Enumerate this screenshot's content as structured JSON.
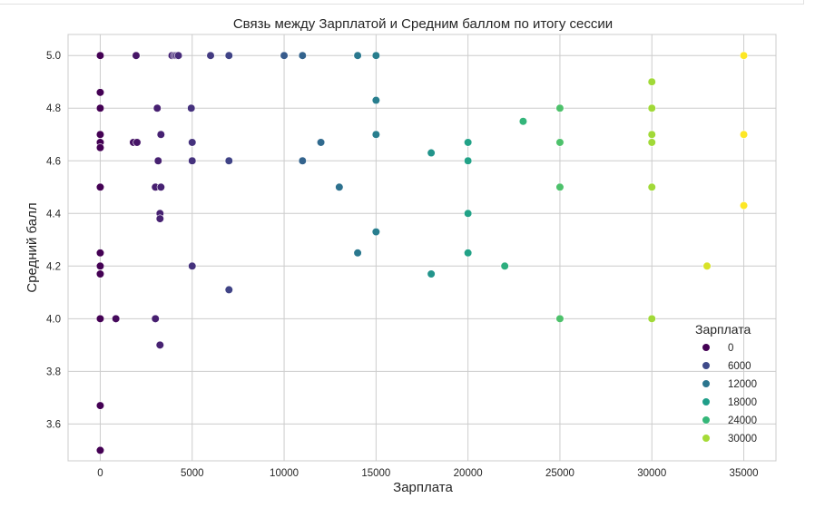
{
  "chart_data": {
    "type": "scatter",
    "title": "Связь между Зарплатой и Средним баллом по итогу сессии",
    "xlabel": "Зарплата",
    "ylabel": "Средний балл",
    "xlim": [
      -1750,
      36750
    ],
    "ylim": [
      3.46,
      5.08
    ],
    "xticks": [
      0,
      5000,
      10000,
      15000,
      20000,
      25000,
      30000,
      35000
    ],
    "yticks": [
      3.6,
      3.8,
      4.0,
      4.2,
      4.4,
      4.6,
      4.8,
      5.0
    ],
    "ytick_labels": [
      "3.6",
      "3.8",
      "4.0",
      "4.2",
      "4.4",
      "4.6",
      "4.8",
      "5.0"
    ],
    "grid": true,
    "hue": "Зарплата",
    "colormap": "viridis",
    "hue_range": [
      0,
      35000
    ],
    "legend": {
      "title": "Зарплата",
      "placement": "lower-right",
      "entries": [
        {
          "label": "0",
          "value": 0,
          "color": "#440154"
        },
        {
          "label": "6000",
          "value": 6000,
          "color": "#3e4a89"
        },
        {
          "label": "12000",
          "value": 12000,
          "color": "#2b758e"
        },
        {
          "label": "18000",
          "value": 18000,
          "color": "#1f9e89"
        },
        {
          "label": "24000",
          "value": 24000,
          "color": "#35b779"
        },
        {
          "label": "30000",
          "value": 30000,
          "color": "#a5db36"
        }
      ]
    },
    "points": [
      {
        "x": 0,
        "y": 5.0
      },
      {
        "x": 0,
        "y": 4.86
      },
      {
        "x": 0,
        "y": 4.8
      },
      {
        "x": 0,
        "y": 4.7
      },
      {
        "x": 0,
        "y": 4.67
      },
      {
        "x": 0,
        "y": 4.65
      },
      {
        "x": 0,
        "y": 4.5
      },
      {
        "x": 0,
        "y": 4.25
      },
      {
        "x": 0,
        "y": 4.2
      },
      {
        "x": 0,
        "y": 4.17
      },
      {
        "x": 0,
        "y": 4.0
      },
      {
        "x": 0,
        "y": 3.67
      },
      {
        "x": 0,
        "y": 3.5
      },
      {
        "x": 850,
        "y": 4.0
      },
      {
        "x": 1800,
        "y": 4.67
      },
      {
        "x": 2000,
        "y": 4.67
      },
      {
        "x": 1950,
        "y": 5.0
      },
      {
        "x": 3000,
        "y": 4.5
      },
      {
        "x": 3000,
        "y": 4.0
      },
      {
        "x": 3100,
        "y": 4.8
      },
      {
        "x": 3150,
        "y": 4.6
      },
      {
        "x": 3250,
        "y": 4.4
      },
      {
        "x": 3250,
        "y": 4.38
      },
      {
        "x": 3300,
        "y": 4.7
      },
      {
        "x": 3300,
        "y": 4.5
      },
      {
        "x": 3250,
        "y": 3.9
      },
      {
        "x": 3900,
        "y": 5.0
      },
      {
        "x": 4050,
        "y": 5.0
      },
      {
        "x": 4150,
        "y": 5.0
      },
      {
        "x": 4250,
        "y": 5.0
      },
      {
        "x": 4950,
        "y": 4.8
      },
      {
        "x": 5000,
        "y": 4.67
      },
      {
        "x": 5000,
        "y": 4.6
      },
      {
        "x": 5000,
        "y": 4.2
      },
      {
        "x": 6000,
        "y": 5.0
      },
      {
        "x": 7000,
        "y": 5.0
      },
      {
        "x": 7000,
        "y": 4.6
      },
      {
        "x": 7000,
        "y": 4.11
      },
      {
        "x": 10000,
        "y": 5.0
      },
      {
        "x": 11000,
        "y": 5.0
      },
      {
        "x": 11000,
        "y": 4.6
      },
      {
        "x": 12000,
        "y": 4.67
      },
      {
        "x": 13000,
        "y": 4.5
      },
      {
        "x": 14000,
        "y": 5.0
      },
      {
        "x": 14000,
        "y": 4.25
      },
      {
        "x": 15000,
        "y": 5.0
      },
      {
        "x": 15000,
        "y": 4.83
      },
      {
        "x": 15000,
        "y": 4.7
      },
      {
        "x": 15000,
        "y": 4.33
      },
      {
        "x": 18000,
        "y": 4.63
      },
      {
        "x": 18000,
        "y": 4.17
      },
      {
        "x": 20000,
        "y": 4.67
      },
      {
        "x": 20000,
        "y": 4.6
      },
      {
        "x": 20000,
        "y": 4.4
      },
      {
        "x": 20000,
        "y": 4.25
      },
      {
        "x": 22000,
        "y": 4.2
      },
      {
        "x": 23000,
        "y": 4.75
      },
      {
        "x": 25000,
        "y": 4.8
      },
      {
        "x": 25000,
        "y": 4.67
      },
      {
        "x": 25000,
        "y": 4.5
      },
      {
        "x": 25000,
        "y": 4.0
      },
      {
        "x": 30000,
        "y": 4.9
      },
      {
        "x": 30000,
        "y": 4.8
      },
      {
        "x": 30000,
        "y": 4.7
      },
      {
        "x": 30000,
        "y": 4.67
      },
      {
        "x": 30000,
        "y": 4.5
      },
      {
        "x": 30000,
        "y": 4.0
      },
      {
        "x": 33000,
        "y": 4.2
      },
      {
        "x": 35000,
        "y": 5.0
      },
      {
        "x": 35000,
        "y": 4.7
      },
      {
        "x": 35000,
        "y": 4.43
      }
    ]
  }
}
